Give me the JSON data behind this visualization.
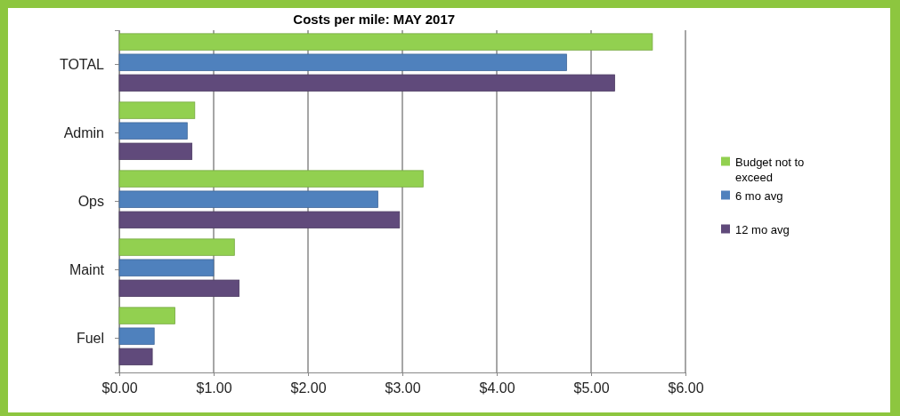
{
  "chart_data": {
    "type": "bar",
    "orientation": "horizontal",
    "title": "Costs per mile:  MAY 2017",
    "categories": [
      "TOTAL",
      "Admin",
      "Ops",
      "Maint",
      "Fuel"
    ],
    "series": [
      {
        "name": "Budget not to exceed",
        "color": "#92d050",
        "values": [
          5.65,
          0.8,
          3.22,
          1.22,
          0.59
        ]
      },
      {
        "name": "6 mo avg",
        "color": "#4f81bd",
        "values": [
          4.74,
          0.72,
          2.74,
          1.0,
          0.37
        ]
      },
      {
        "name": "12 mo avg",
        "color": "#604a7b",
        "values": [
          5.25,
          0.77,
          2.97,
          1.27,
          0.35
        ]
      }
    ],
    "xlim": [
      0,
      6
    ],
    "xticks": [
      {
        "value": 0,
        "label": "$0.00"
      },
      {
        "value": 1,
        "label": "$1.00"
      },
      {
        "value": 2,
        "label": "$2.00"
      },
      {
        "value": 3,
        "label": "$3.00"
      },
      {
        "value": 4,
        "label": "$4.00"
      },
      {
        "value": 5,
        "label": "$5.00"
      },
      {
        "value": 6,
        "label": "$6.00"
      }
    ],
    "grid": "x",
    "legend": "right"
  }
}
